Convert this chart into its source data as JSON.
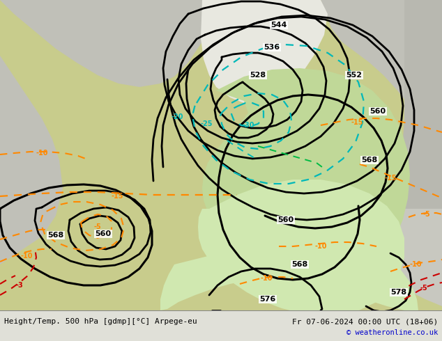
{
  "title_left": "Height/Temp. 500 hPa [gdmp][°C] Arpege-eu",
  "title_right": "Fr 07-06-2024 00:00 UTC (18+06)",
  "copyright": "© weatheronline.co.uk",
  "bg_land_color": "#c8cc8c",
  "bg_sea_color": "#c0c0b8",
  "bg_white_area": "#e8e8e0",
  "bg_green_area": "#c0d898",
  "bg_lightgreen_area": "#d0e8b0",
  "bottom_bar_color": "#e0e0d8",
  "font_color_title": "#000000",
  "font_color_copyright": "#0000cc",
  "contour_black": "#000000",
  "contour_orange": "#ff8800",
  "contour_cyan": "#00b8b8",
  "contour_red": "#cc0000",
  "contour_green": "#00aa00"
}
